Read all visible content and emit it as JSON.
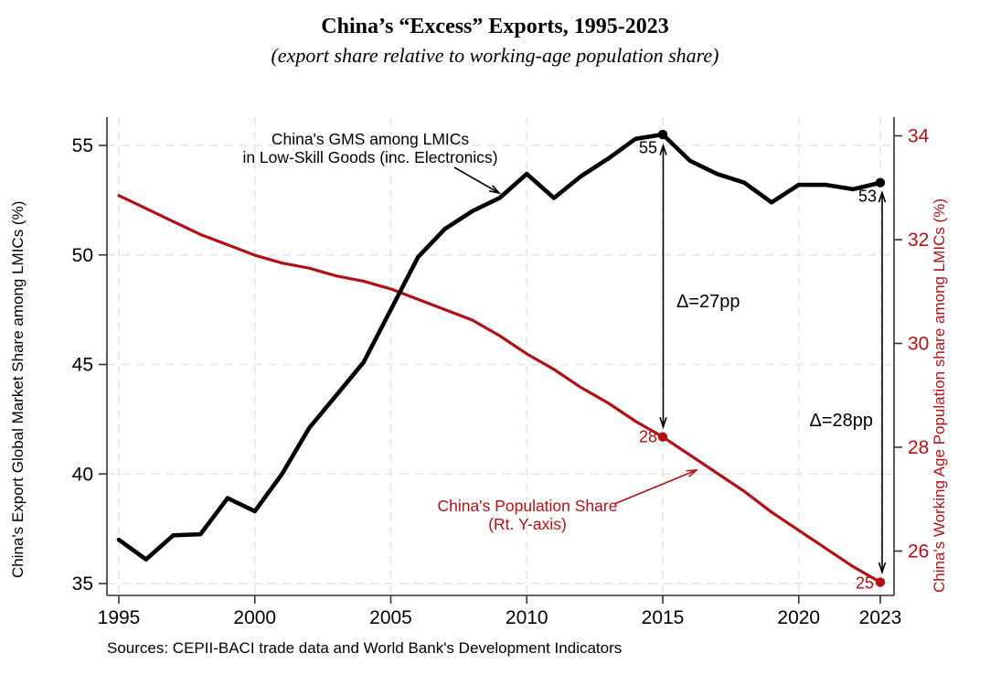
{
  "title": "China’s “Excess” Exports, 1995-2023",
  "subtitle": "(export share relative to working-age population share)",
  "source_note": "Sources: CEPII-BACI trade data and World Bank's Development Indicators",
  "colors": {
    "black_series": "#000000",
    "red_series": "#b11116",
    "grid": "#e4e4e4",
    "axis": "#333333"
  },
  "chart_data": {
    "type": "line",
    "x": [
      1995,
      1996,
      1997,
      1998,
      1999,
      2000,
      2001,
      2002,
      2003,
      2004,
      2005,
      2006,
      2007,
      2008,
      2009,
      2010,
      2011,
      2012,
      2013,
      2014,
      2015,
      2016,
      2017,
      2018,
      2019,
      2020,
      2021,
      2022,
      2023
    ],
    "series": [
      {
        "name": "China's GMS among LMICs in Low-Skill Goods (inc. Electronics)",
        "axis": "left",
        "color": "#000000",
        "values": [
          37.0,
          36.1,
          37.2,
          37.25,
          38.9,
          38.3,
          40.0,
          42.1,
          43.6,
          45.1,
          47.5,
          49.9,
          51.2,
          52.0,
          52.6,
          53.7,
          52.6,
          53.6,
          54.4,
          55.3,
          55.5,
          54.3,
          53.7,
          53.3,
          52.4,
          53.2,
          53.2,
          53.0,
          53.3
        ]
      },
      {
        "name": "China's Population Share (Rt. Y-axis)",
        "axis": "right",
        "color": "#b11116",
        "values": [
          32.85,
          32.6,
          32.35,
          32.1,
          31.9,
          31.7,
          31.55,
          31.45,
          31.3,
          31.2,
          31.05,
          30.85,
          30.65,
          30.45,
          30.15,
          29.8,
          29.5,
          29.15,
          28.85,
          28.5,
          28.2,
          27.85,
          27.5,
          27.15,
          26.75,
          26.4,
          26.05,
          25.7,
          25.4
        ]
      }
    ],
    "left_axis": {
      "label": "China's Export Global Market Share among LMICs (%)",
      "ticks": [
        35,
        40,
        45,
        50,
        55
      ]
    },
    "right_axis": {
      "label": "China's Working Age Population share among LMICs (%)",
      "ticks": [
        26,
        28,
        30,
        32,
        34
      ]
    },
    "x_axis": {
      "ticks": [
        1995,
        2000,
        2005,
        2010,
        2015,
        2020,
        2023
      ]
    },
    "grid": "on",
    "marked_years": [
      2015,
      2023
    ]
  },
  "annotations": {
    "black_label_line1": "China's GMS among LMICs",
    "black_label_line2": "in Low-Skill Goods (inc. Electronics)",
    "red_label_line1": "China's Population Share",
    "red_label_line2": "(Rt. Y-axis)",
    "delta_2015": "Δ=27pp",
    "delta_2023": "Δ=28pp",
    "point_labels": {
      "black_2015": "55",
      "black_2023": "53",
      "red_2015": "28",
      "red_2023": "25"
    }
  }
}
